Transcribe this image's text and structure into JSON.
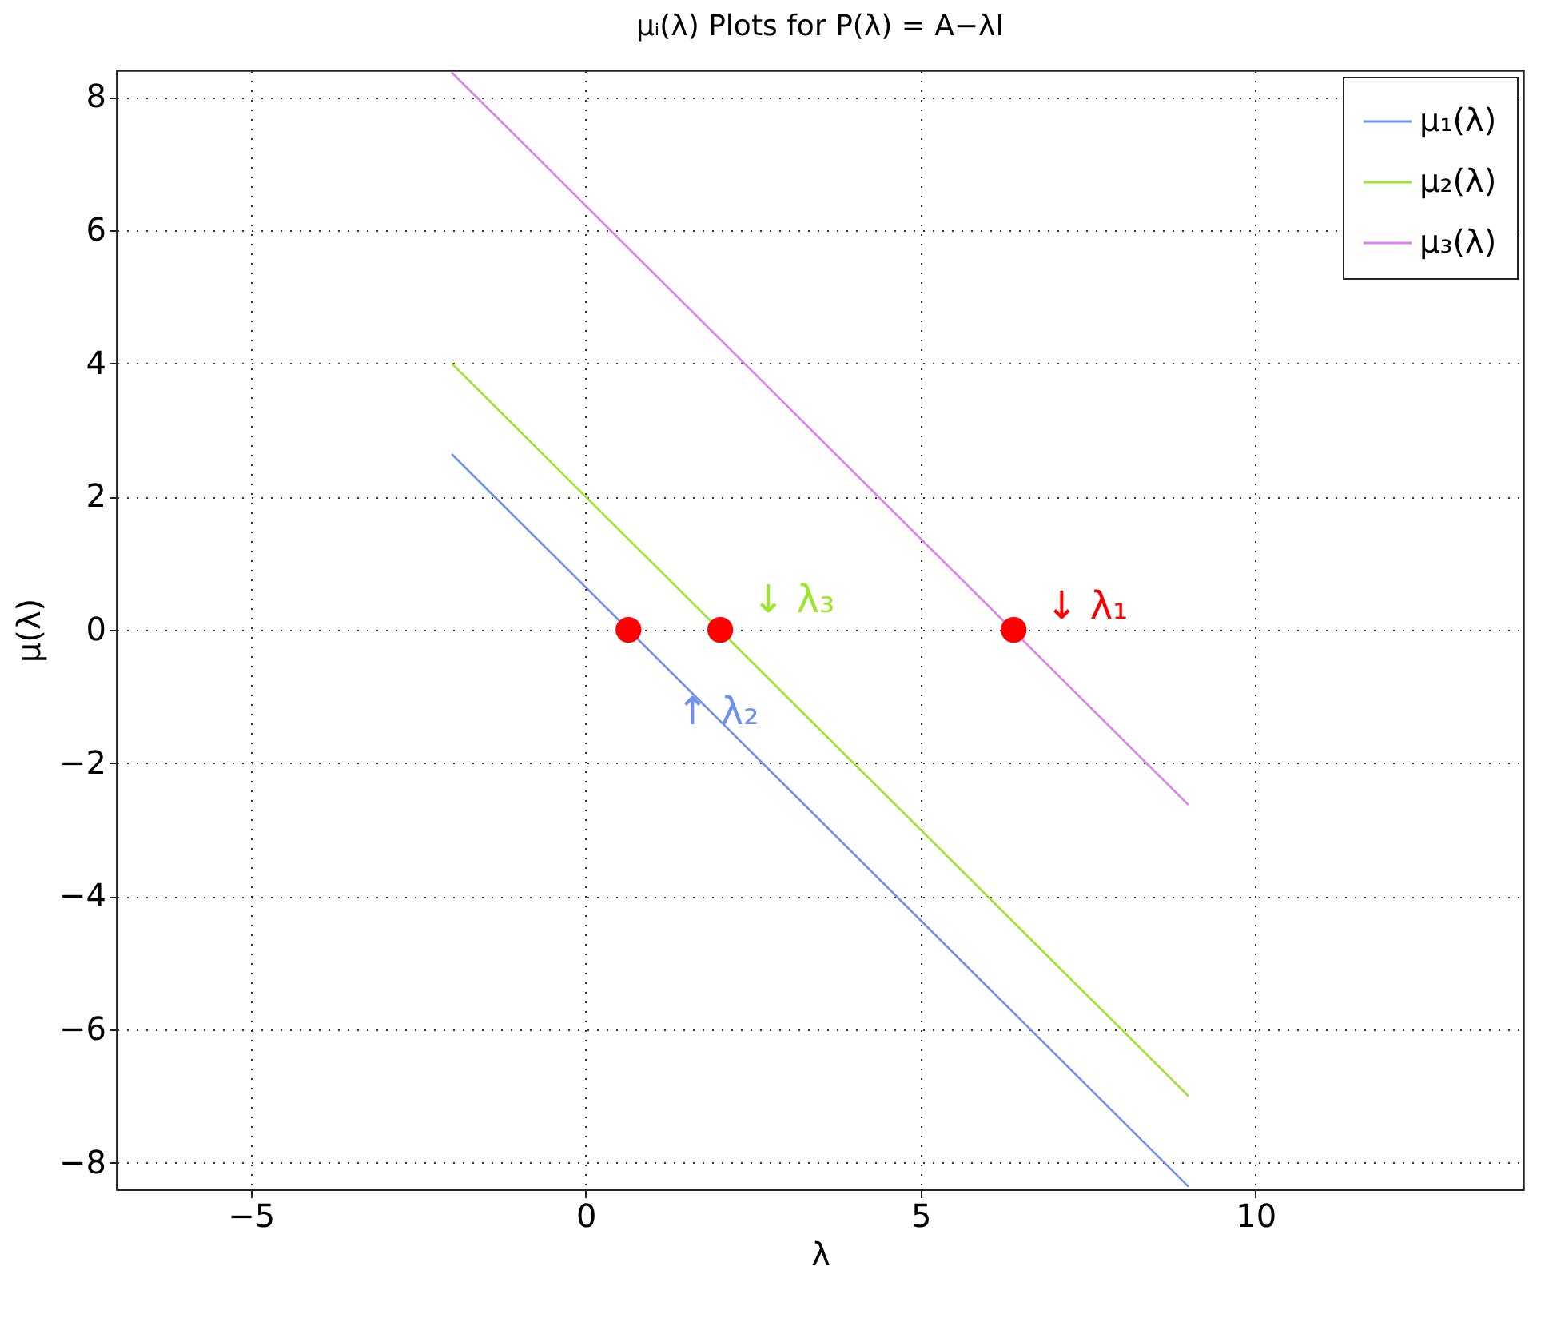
{
  "chart_data": {
    "type": "line",
    "title": "μᵢ(λ) Plots for P(λ) = A−λI",
    "xlabel": "λ",
    "ylabel": "μ(λ)",
    "xlim": [
      -7,
      14
    ],
    "xticks": [
      -5,
      0,
      5,
      10
    ],
    "ylim": [
      -8.4,
      8.4
    ],
    "yticks": [
      -8,
      -6,
      -4,
      -2,
      0,
      2,
      4,
      6,
      8
    ],
    "grid": true,
    "legend": "top right",
    "line_style": "solid",
    "series": [
      {
        "name": "μ₁(λ)",
        "color": "#7090f0",
        "x": [
          -2,
          9
        ],
        "values": [
          2.64,
          -8.36
        ]
      },
      {
        "name": "μ₂(λ)",
        "color": "#9be52a",
        "x": [
          -2,
          9
        ],
        "values": [
          4,
          -7
        ]
      },
      {
        "name": "μ₃(λ)",
        "color": "#e07ff0",
        "x": [
          -2,
          9
        ],
        "values": [
          8.37,
          -2.63
        ]
      },
      {
        "type": "scatter",
        "marker": "circle",
        "color": "#ff0000",
        "x": [
          0.64,
          2.01,
          6.39
        ],
        "values": [
          0,
          0,
          0
        ]
      }
    ],
    "annotations": [
      {
        "text": "↑ λ₂",
        "x": 0.64,
        "y": 0
      },
      {
        "text": "↓ λ₃",
        "x": 2.01,
        "y": 0
      },
      {
        "text": "↓ λ₁",
        "x": 6.39,
        "y": 0
      }
    ]
  }
}
